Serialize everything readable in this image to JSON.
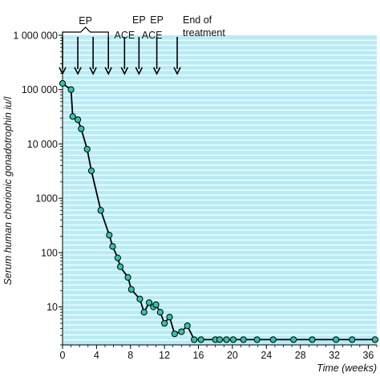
{
  "chart_data": {
    "type": "line",
    "xlabel": "Time (weeks)",
    "ylabel": "Serum human chorionic gonadotrophin iu/l",
    "x_scale": "linear",
    "y_scale": "log",
    "xlim": [
      0,
      37
    ],
    "ylim": [
      2,
      1000000
    ],
    "x_ticks": [
      0,
      4,
      8,
      12,
      16,
      20,
      24,
      28,
      32,
      36
    ],
    "x_tick_labels": [
      "0",
      "4",
      "8",
      "12",
      "16",
      "20",
      "24",
      "28",
      "32",
      "36"
    ],
    "y_ticks": [
      10,
      100,
      1000,
      10000,
      100000,
      1000000
    ],
    "y_tick_labels": [
      "10",
      "100",
      "1000",
      "10 000",
      "100 000",
      "1 000 000"
    ],
    "grid": "horizontal lines",
    "colors": {
      "background": "#b8ecf6",
      "grid": "#ffffff",
      "line": "#000000",
      "marker": "#2ec6a6"
    },
    "series": [
      {
        "x": [
          0,
          1.0,
          1.2,
          1.8,
          2.2,
          2.9,
          3.4,
          4.5,
          5.5,
          5.9,
          6.5,
          6.8,
          7.7,
          8.1,
          9.1,
          9.6,
          10.2,
          10.7,
          11.0,
          11.5,
          12.0,
          12.6,
          13.2,
          14.0,
          14.7,
          15.5,
          16.3,
          18.0,
          18.5,
          19.3,
          20.1,
          21.3,
          22.9,
          24.8,
          27.2,
          29.4,
          32.2,
          34.1,
          36.8
        ],
        "y": [
          130000,
          100000,
          32000,
          28000,
          19000,
          8000,
          3200,
          600,
          210,
          130,
          80,
          55,
          35,
          21,
          14,
          8,
          12,
          10,
          11,
          8,
          5,
          6.5,
          3.2,
          3.5,
          4.5,
          2.5,
          2.5,
          2.5,
          2.5,
          2.5,
          2.5,
          2.5,
          2.5,
          2.5,
          2.5,
          2.5,
          2.5,
          2.5,
          2.5
        ]
      }
    ],
    "annotations": [
      {
        "text": "EP",
        "bracket": true
      },
      {
        "text": "ACE"
      },
      {
        "text": "EP"
      },
      {
        "text": "ACE"
      },
      {
        "text": "EP"
      },
      {
        "text": "End of"
      },
      {
        "text": "treatment"
      }
    ],
    "arrows_x": [
      0,
      1.8,
      3.6,
      5.4,
      7.3,
      9.0,
      11.1,
      13.5
    ]
  }
}
